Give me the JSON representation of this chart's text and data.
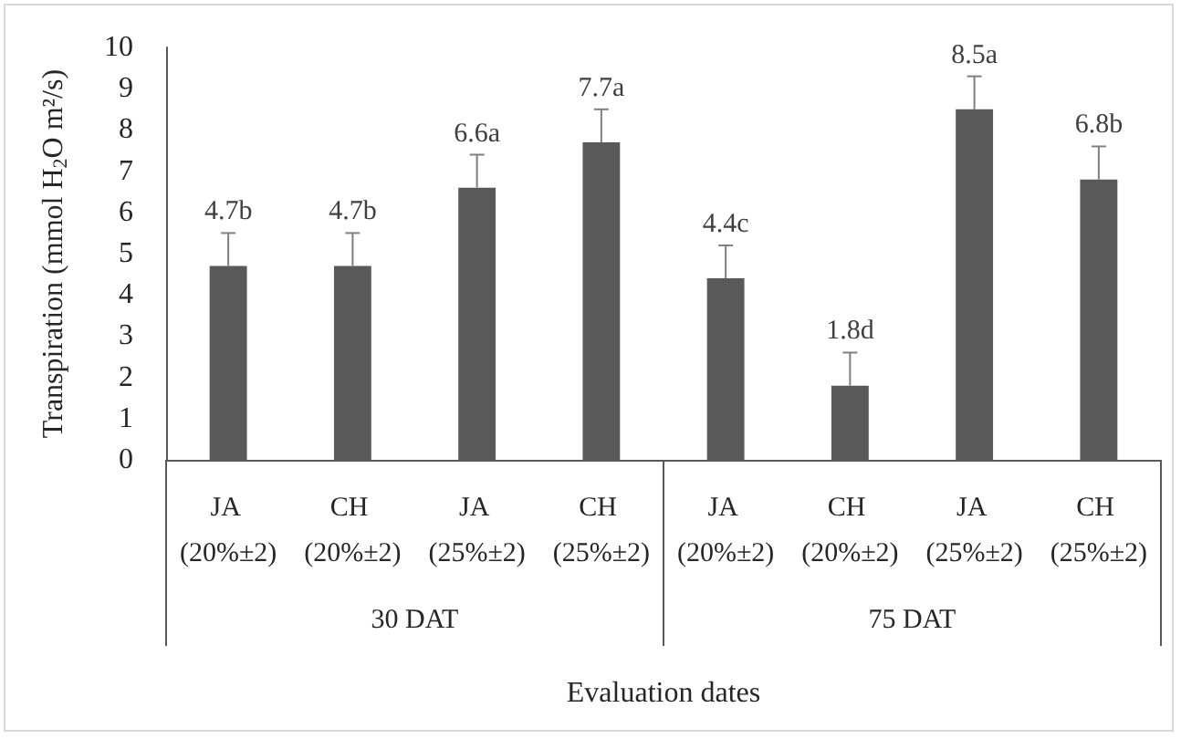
{
  "chart_data": {
    "type": "bar",
    "categories": [
      "JA (20%±2)",
      "CH (20%±2)",
      "JA (25%±2)",
      "CH (25%±2)",
      "JA (20%±2)",
      "CH (20%±2)",
      "JA (25%±2)",
      "CH (25%±2)"
    ],
    "values": [
      4.7,
      4.7,
      6.6,
      7.7,
      4.4,
      1.8,
      8.5,
      6.8
    ],
    "errors": [
      [
        4.7,
        5.5
      ],
      [
        4.7,
        5.5
      ],
      [
        6.6,
        7.4
      ],
      [
        7.7,
        8.5
      ],
      [
        4.4,
        5.2
      ],
      [
        1.8,
        2.6
      ],
      [
        8.5,
        9.3
      ],
      [
        6.8,
        7.6
      ]
    ],
    "value_labels": [
      "4.7b",
      "4.7b",
      "6.6a",
      "7.7a",
      "4.4c",
      "1.8d",
      "8.5a",
      "6.8b"
    ],
    "color": "#595959",
    "xlabel": "Evaluation dates",
    "ylabel": "Transpiration (mmol H$_{2}$O m²/s)",
    "annotations": [
      "30 DAT",
      "75 DAT"
    ],
    "ylim": [
      0,
      10
    ],
    "yticks": [
      0,
      1,
      2,
      3,
      4,
      5,
      6,
      7,
      8,
      9,
      10
    ],
    "grid": false
  }
}
